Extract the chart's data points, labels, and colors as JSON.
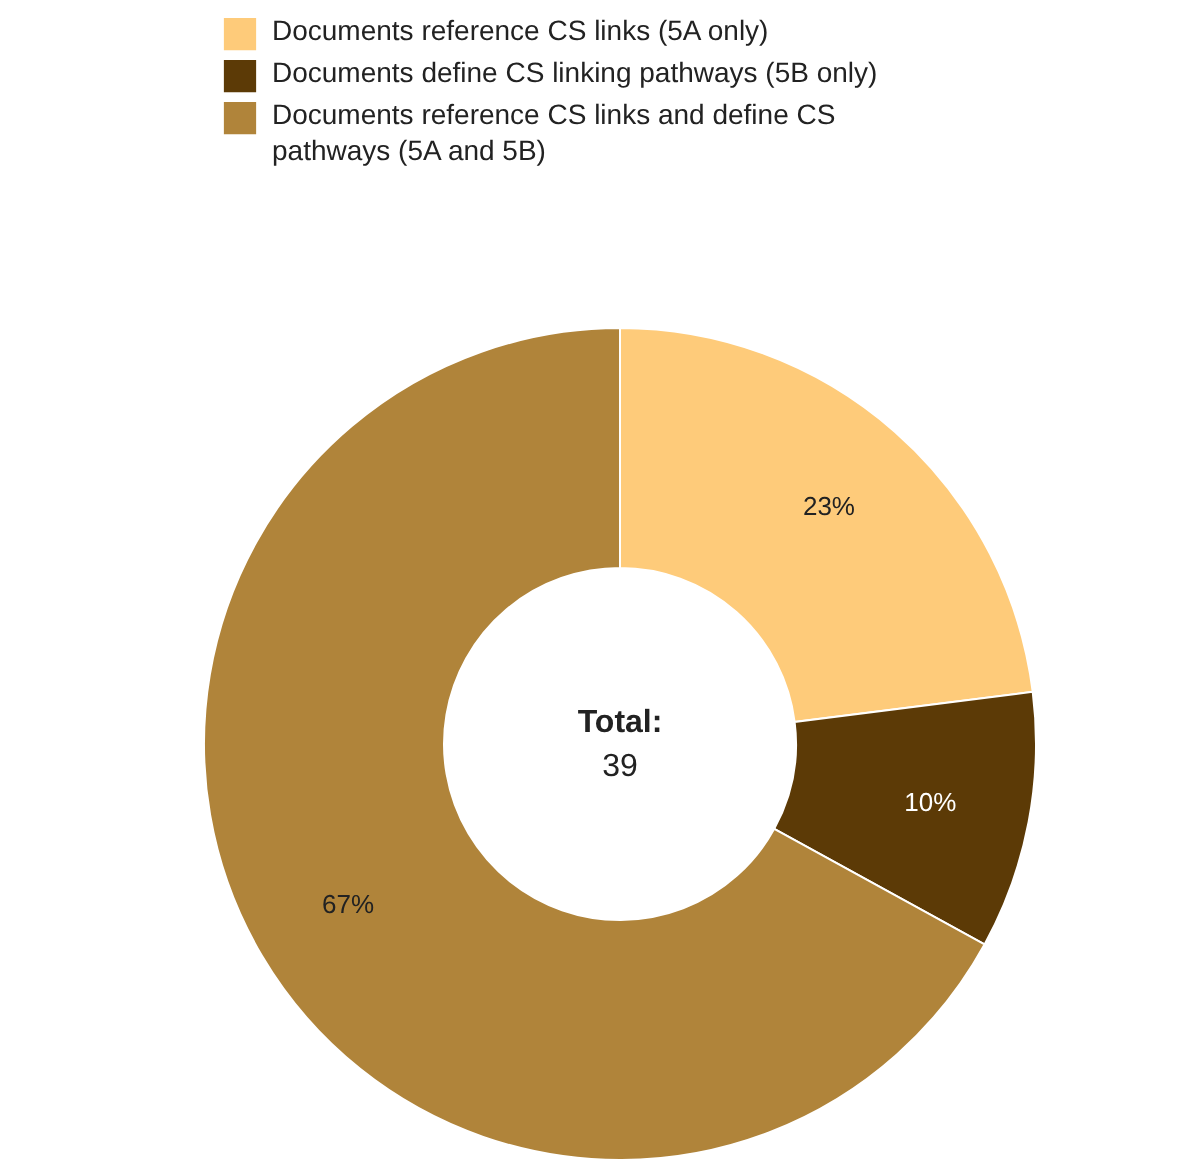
{
  "chart_data": {
    "type": "donut",
    "categories": [
      "Documents reference CS links (5A only)",
      "Documents define CS linking pathways (5B only)",
      "Documents reference CS links and define CS pathways (5A and 5B)"
    ],
    "values": [
      23,
      10,
      67
    ],
    "colors": [
      "#fecb7a",
      "#5c3a06",
      "#b0843a"
    ],
    "value_labels": [
      "23%",
      "10%",
      "67%"
    ],
    "annotations": [
      "Total:",
      "39"
    ],
    "legend": "top left"
  }
}
